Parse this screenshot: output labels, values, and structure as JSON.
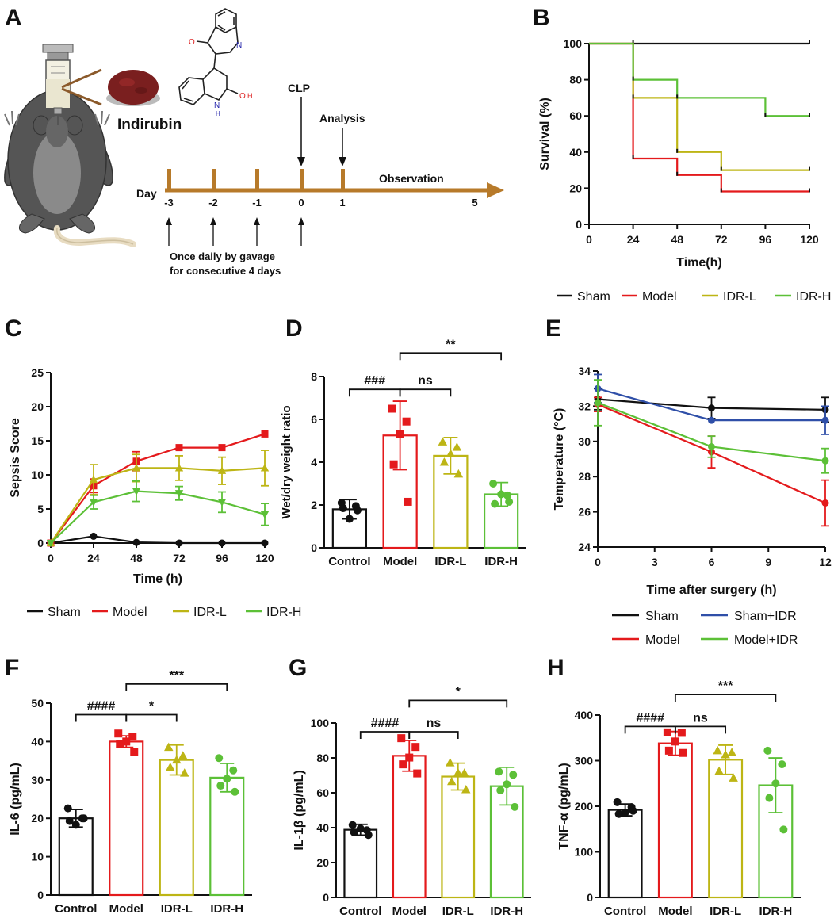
{
  "colors": {
    "black": "#111111",
    "red": "#e41a1c",
    "olive": "#bdb515",
    "green": "#5cc037",
    "blue": "#2f4fa8",
    "brown": "#b77a2a"
  },
  "panels": {
    "A": {
      "label": "A",
      "compound": "Indirubin",
      "chem_labels": {
        "o1": "O",
        "n1": "N",
        "n2": "N",
        "h": "H",
        "oh": "O",
        "oh_h": "H"
      },
      "day_label": "Day",
      "days": [
        "-3",
        "-2",
        "-1",
        "0",
        "1",
        "5"
      ],
      "clp_label": "CLP",
      "analysis_label": "Analysis",
      "observation_label": "Observation",
      "gavage_text": [
        "Once daily by gavage",
        "for consecutive 4 days"
      ]
    },
    "B": {
      "label": "B"
    },
    "C": {
      "label": "C"
    },
    "D": {
      "label": "D"
    },
    "E": {
      "label": "E"
    },
    "F": {
      "label": "F"
    },
    "G": {
      "label": "G"
    },
    "H": {
      "label": "H"
    }
  },
  "chart_data": [
    {
      "id": "B",
      "type": "line",
      "step": true,
      "ylabel": "Survival (%)",
      "xlabel": "Time(h)",
      "x_ticks": [
        0,
        24,
        48,
        72,
        96,
        120
      ],
      "y_ticks": [
        0,
        20,
        40,
        60,
        80,
        100
      ],
      "xlim": [
        0,
        120
      ],
      "ylim": [
        0,
        100
      ],
      "series": [
        {
          "name": "Sham",
          "color": "black",
          "x": [
            0,
            120
          ],
          "y": [
            100,
            100
          ]
        },
        {
          "name": "Model",
          "color": "red",
          "x": [
            0,
            24,
            24,
            48,
            72,
            120
          ],
          "y": [
            100,
            100,
            36.4,
            27.3,
            18.2,
            18.2
          ]
        },
        {
          "name": "IDR-L",
          "color": "olive",
          "x": [
            0,
            24,
            48,
            72,
            120
          ],
          "y": [
            100,
            70,
            40,
            30,
            30
          ]
        },
        {
          "name": "IDR-H",
          "color": "green",
          "x": [
            0,
            24,
            48,
            96,
            120
          ],
          "y": [
            100,
            80,
            70,
            60,
            60
          ]
        }
      ],
      "legend": [
        "Sham",
        "Model",
        "IDR-L",
        "IDR-H"
      ]
    },
    {
      "id": "C",
      "type": "line",
      "ylabel": "Sepsis Score",
      "xlabel": "Time (h)",
      "x_ticks": [
        0,
        24,
        48,
        72,
        96,
        120
      ],
      "y_ticks": [
        0,
        5,
        10,
        15,
        20,
        25
      ],
      "xlim": [
        0,
        120
      ],
      "ylim": [
        0,
        25
      ],
      "series": [
        {
          "name": "Sham",
          "color": "black",
          "marker": "circle",
          "x": [
            0,
            24,
            48,
            72,
            96,
            120
          ],
          "y": [
            0,
            1,
            0.1,
            0,
            0,
            0
          ],
          "err": [
            0,
            0,
            0,
            0,
            0,
            0
          ]
        },
        {
          "name": "Model",
          "color": "red",
          "marker": "square",
          "x": [
            0,
            24,
            48,
            72,
            96,
            120
          ],
          "y": [
            0,
            8.4,
            12,
            14,
            14,
            16
          ],
          "err": [
            0,
            1,
            1.4,
            0,
            0,
            0
          ]
        },
        {
          "name": "IDR-L",
          "color": "olive",
          "marker": "triangle",
          "x": [
            0,
            24,
            48,
            72,
            96,
            120
          ],
          "y": [
            0,
            9.3,
            11,
            11,
            10.6,
            11
          ],
          "err": [
            0,
            2.2,
            2,
            1.8,
            2,
            2.6
          ]
        },
        {
          "name": "IDR-H",
          "color": "green",
          "marker": "triangle-down",
          "x": [
            0,
            24,
            48,
            72,
            96,
            120
          ],
          "y": [
            0,
            6,
            7.6,
            7.3,
            6,
            4.2
          ],
          "err": [
            0,
            1,
            1.5,
            1,
            1.5,
            1.6
          ]
        }
      ],
      "legend": [
        "Sham",
        "Model",
        "IDR-L",
        "IDR-H"
      ]
    },
    {
      "id": "D",
      "type": "bar",
      "ylabel": "Wet/dry weight ratio",
      "categories": [
        "Control",
        "Model",
        "IDR-L",
        "IDR-H"
      ],
      "colors": [
        "black",
        "red",
        "olive",
        "green"
      ],
      "markers": [
        "circle",
        "square",
        "triangle",
        "circle"
      ],
      "values": [
        1.8,
        5.25,
        4.3,
        2.5
      ],
      "sd": [
        0.45,
        1.6,
        0.85,
        0.55
      ],
      "points": [
        [
          2.1,
          1.95,
          1.35,
          1.85,
          1.75
        ],
        [
          6.5,
          5.9,
          5.3,
          3.9,
          2.15
        ],
        [
          4.95,
          4.7,
          4.4,
          4.0,
          3.45
        ],
        [
          3.0,
          2.45,
          2.5,
          2.05,
          2.15
        ]
      ],
      "y_ticks": [
        0,
        2,
        4,
        6,
        8
      ],
      "ylim": [
        0,
        8
      ],
      "brackets": [
        {
          "from": 0,
          "to": 1,
          "label": "###",
          "level": 7.4
        },
        {
          "from": 1,
          "to": 2,
          "label": "ns",
          "level": 7.4
        },
        {
          "from": 1,
          "to": 3,
          "label": "**",
          "level": 9.1
        }
      ]
    },
    {
      "id": "E",
      "type": "line",
      "ylabel": "Temperature (°C)",
      "xlabel": "Time after surgery (h)",
      "x_ticks": [
        0,
        3,
        6,
        9,
        12
      ],
      "y_ticks": [
        24,
        26,
        28,
        30,
        32,
        34
      ],
      "xlim": [
        0,
        12
      ],
      "ylim": [
        24,
        34
      ],
      "series": [
        {
          "name": "Sham",
          "color": "black",
          "x": [
            0,
            6,
            12
          ],
          "y": [
            32.4,
            31.9,
            31.8
          ],
          "err": [
            0.6,
            0.6,
            0.7
          ]
        },
        {
          "name": "Sham+IDR",
          "color": "blue",
          "x": [
            0,
            6,
            12
          ],
          "y": [
            33,
            31.2,
            31.2
          ],
          "err": [
            0.8,
            0,
            0.8
          ]
        },
        {
          "name": "Model",
          "color": "red",
          "x": [
            0,
            6,
            12
          ],
          "y": [
            32.1,
            29.4,
            26.5
          ],
          "err": [
            0.4,
            0.9,
            1.3
          ]
        },
        {
          "name": "Model+IDR",
          "color": "green",
          "x": [
            0,
            6,
            12
          ],
          "y": [
            32.2,
            29.7,
            28.9
          ],
          "err": [
            1.3,
            0.6,
            0.7
          ]
        }
      ],
      "legend": [
        "Sham",
        "Sham+IDR",
        "Model",
        "Model+IDR"
      ]
    },
    {
      "id": "F",
      "type": "bar",
      "ylabel": "IL-6 (pg/mL)",
      "categories": [
        "Control",
        "Model",
        "IDR-L",
        "IDR-H"
      ],
      "colors": [
        "black",
        "red",
        "olive",
        "green"
      ],
      "markers": [
        "circle",
        "square",
        "triangle",
        "circle"
      ],
      "values": [
        20,
        40,
        35.2,
        30.6
      ],
      "sd": [
        2.3,
        1.5,
        3.9,
        3.7
      ],
      "points": [
        [
          22.6,
          20,
          18.3,
          19.3,
          20
        ],
        [
          42.1,
          41.3,
          40,
          39.4,
          37.3
        ],
        [
          38.5,
          36.3,
          35.2,
          33.3,
          31.8
        ],
        [
          35.7,
          32.5,
          30.3,
          28.5,
          26.9
        ]
      ],
      "y_ticks": [
        0,
        10,
        20,
        30,
        40,
        50
      ],
      "ylim": [
        0,
        50
      ],
      "brackets": [
        {
          "from": 0,
          "to": 1,
          "label": "####",
          "level": 47
        },
        {
          "from": 1,
          "to": 2,
          "label": "*",
          "level": 47
        },
        {
          "from": 1,
          "to": 3,
          "label": "***",
          "level": 55
        }
      ]
    },
    {
      "id": "G",
      "type": "bar",
      "ylabel": "IL-1β (pg/mL)",
      "categories": [
        "Control",
        "Model",
        "IDR-L",
        "IDR-H"
      ],
      "colors": [
        "black",
        "red",
        "olive",
        "green"
      ],
      "markers": [
        "circle",
        "square",
        "triangle",
        "circle"
      ],
      "values": [
        38.8,
        81.2,
        69.3,
        63.8
      ],
      "sd": [
        3.1,
        8.8,
        7.7,
        10.8
      ],
      "points": [
        [
          41.5,
          38.5,
          39.5,
          37.3,
          35.8
        ],
        [
          91.3,
          86.3,
          80.2,
          76.3,
          71.1
        ],
        [
          77.2,
          71.3,
          71.5,
          66.5,
          61.8
        ],
        [
          72.1,
          70.3,
          64.9,
          61.4,
          51.9
        ]
      ],
      "y_ticks": [
        0,
        20,
        40,
        60,
        80,
        100
      ],
      "ylim": [
        0,
        100
      ],
      "brackets": [
        {
          "from": 0,
          "to": 1,
          "label": "####",
          "level": 95
        },
        {
          "from": 1,
          "to": 2,
          "label": "ns",
          "level": 95
        },
        {
          "from": 1,
          "to": 3,
          "label": "*",
          "level": 113
        }
      ]
    },
    {
      "id": "H",
      "type": "bar",
      "ylabel": "TNF-α (pg/mL)",
      "categories": [
        "Control",
        "Model",
        "IDR-L",
        "IDR-H"
      ],
      "colors": [
        "black",
        "red",
        "olive",
        "green"
      ],
      "markers": [
        "circle",
        "square",
        "triangle",
        "circle"
      ],
      "values": [
        192,
        338,
        302,
        246
      ],
      "sd": [
        13,
        26,
        32,
        60
      ],
      "points": [
        [
          209,
          198,
          186,
          183,
          190
        ],
        [
          362,
          361,
          342,
          322,
          317
        ],
        [
          322,
          318,
          313,
          277,
          262
        ],
        [
          322,
          292,
          250,
          218,
          149
        ]
      ],
      "y_ticks": [
        0,
        100,
        200,
        300,
        400
      ],
      "ylim": [
        0,
        400
      ],
      "brackets": [
        {
          "from": 0,
          "to": 1,
          "label": "####",
          "level": 375
        },
        {
          "from": 1,
          "to": 2,
          "label": "ns",
          "level": 375
        },
        {
          "from": 1,
          "to": 3,
          "label": "***",
          "level": 445
        }
      ]
    }
  ]
}
